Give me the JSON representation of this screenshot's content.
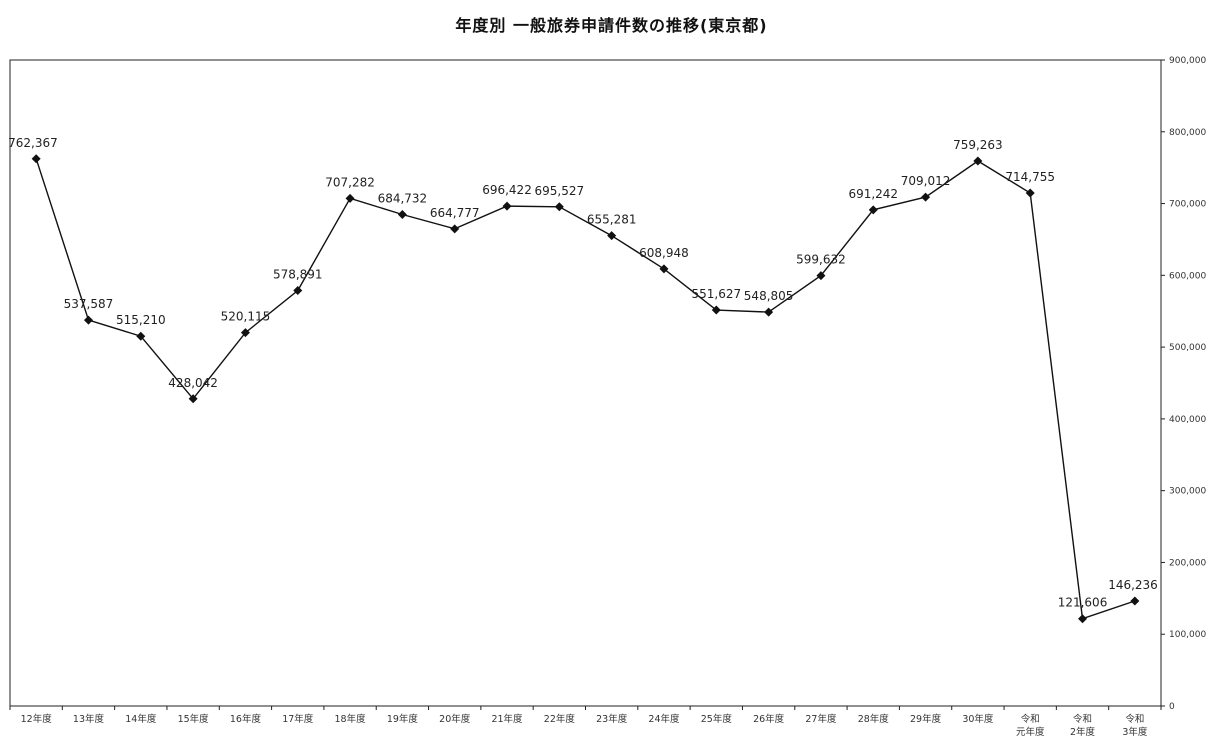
{
  "chart_data": {
    "type": "line",
    "title": "年度別 一般旅券申請件数の推移(東京都)",
    "xlabel": "",
    "ylabel": "",
    "y_axis_position": "right",
    "ylim": [
      0,
      900000
    ],
    "y_ticks": [
      "0",
      "100,000",
      "200,000",
      "300,000",
      "400,000",
      "500,000",
      "600,000",
      "700,000",
      "800,000",
      "900,000"
    ],
    "y_tick_values": [
      0,
      100000,
      200000,
      300000,
      400000,
      500000,
      600000,
      700000,
      800000,
      900000
    ],
    "categories": [
      [
        "12年度"
      ],
      [
        "13年度"
      ],
      [
        "14年度"
      ],
      [
        "15年度"
      ],
      [
        "16年度"
      ],
      [
        "17年度"
      ],
      [
        "18年度"
      ],
      [
        "19年度"
      ],
      [
        "20年度"
      ],
      [
        "21年度"
      ],
      [
        "22年度"
      ],
      [
        "23年度"
      ],
      [
        "24年度"
      ],
      [
        "25年度"
      ],
      [
        "26年度"
      ],
      [
        "27年度"
      ],
      [
        "28年度"
      ],
      [
        "29年度"
      ],
      [
        "30年度"
      ],
      [
        "令和",
        "元年度"
      ],
      [
        "令和",
        "2年度"
      ],
      [
        "令和",
        "3年度"
      ]
    ],
    "series": [
      {
        "values": [
          762367,
          537587,
          515210,
          428042,
          520115,
          578891,
          707282,
          684732,
          664777,
          696422,
          695527,
          655281,
          608948,
          551627,
          548805,
          599632,
          691242,
          709012,
          759263,
          714755,
          121606,
          146236
        ],
        "labels": [
          "762,367",
          "537,587",
          "515,210",
          "428,042",
          "520,115",
          "578,891",
          "707,282",
          "684,732",
          "664,777",
          "696,422",
          "695,527",
          "655,281",
          "608,948",
          "551,627",
          "548,805",
          "599,632",
          "691,242",
          "709,012",
          "759,263",
          "714,755",
          "121,606",
          "146,236"
        ]
      }
    ],
    "grid": false,
    "legend": "none",
    "line_color": "#111111",
    "marker": "diamond"
  }
}
